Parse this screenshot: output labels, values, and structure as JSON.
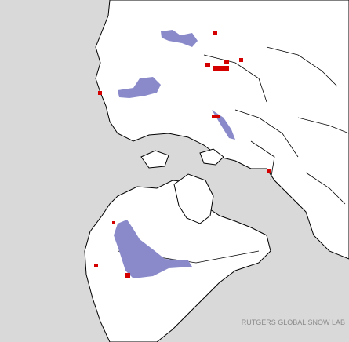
{
  "map": {
    "credit": "RUTGERS GLOBAL SNOW LAB"
  }
}
